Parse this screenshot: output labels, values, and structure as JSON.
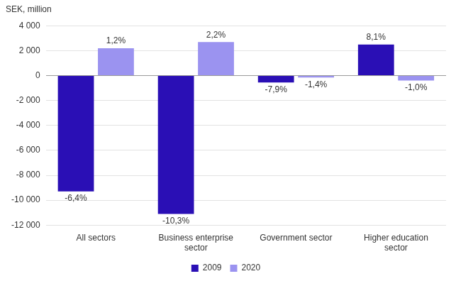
{
  "chart_data": {
    "type": "bar",
    "y_label": "SEK, million",
    "categories": [
      "All sectors",
      "Business enterprise sector",
      "Government sector",
      "Higher education sector"
    ],
    "series": [
      {
        "name": "2009",
        "color": "#2a0fb5",
        "values": [
          -9300,
          -11100,
          -550,
          2500
        ],
        "change_labels": [
          "-6,4%",
          "-10,3%",
          "-7,9%",
          "8,1%"
        ]
      },
      {
        "name": "2020",
        "color": "#9b93f0",
        "values": [
          2200,
          2700,
          -150,
          -400
        ],
        "change_labels": [
          "1,2%",
          "2,2%",
          "-1,4%",
          "-1,0%"
        ]
      }
    ],
    "ylim": [
      -12000,
      4000
    ],
    "yticks": [
      {
        "value": -12000,
        "label": "-12 000"
      },
      {
        "value": -10000,
        "label": "-10 000"
      },
      {
        "value": -8000,
        "label": "-8 000"
      },
      {
        "value": -6000,
        "label": "-6 000"
      },
      {
        "value": -4000,
        "label": "-4 000"
      },
      {
        "value": -2000,
        "label": "-2 000"
      },
      0,
      {
        "value": 2000,
        "label": "2 000"
      },
      {
        "value": 4000,
        "label": "4 000"
      }
    ],
    "grid": true,
    "legend": "bottom"
  }
}
